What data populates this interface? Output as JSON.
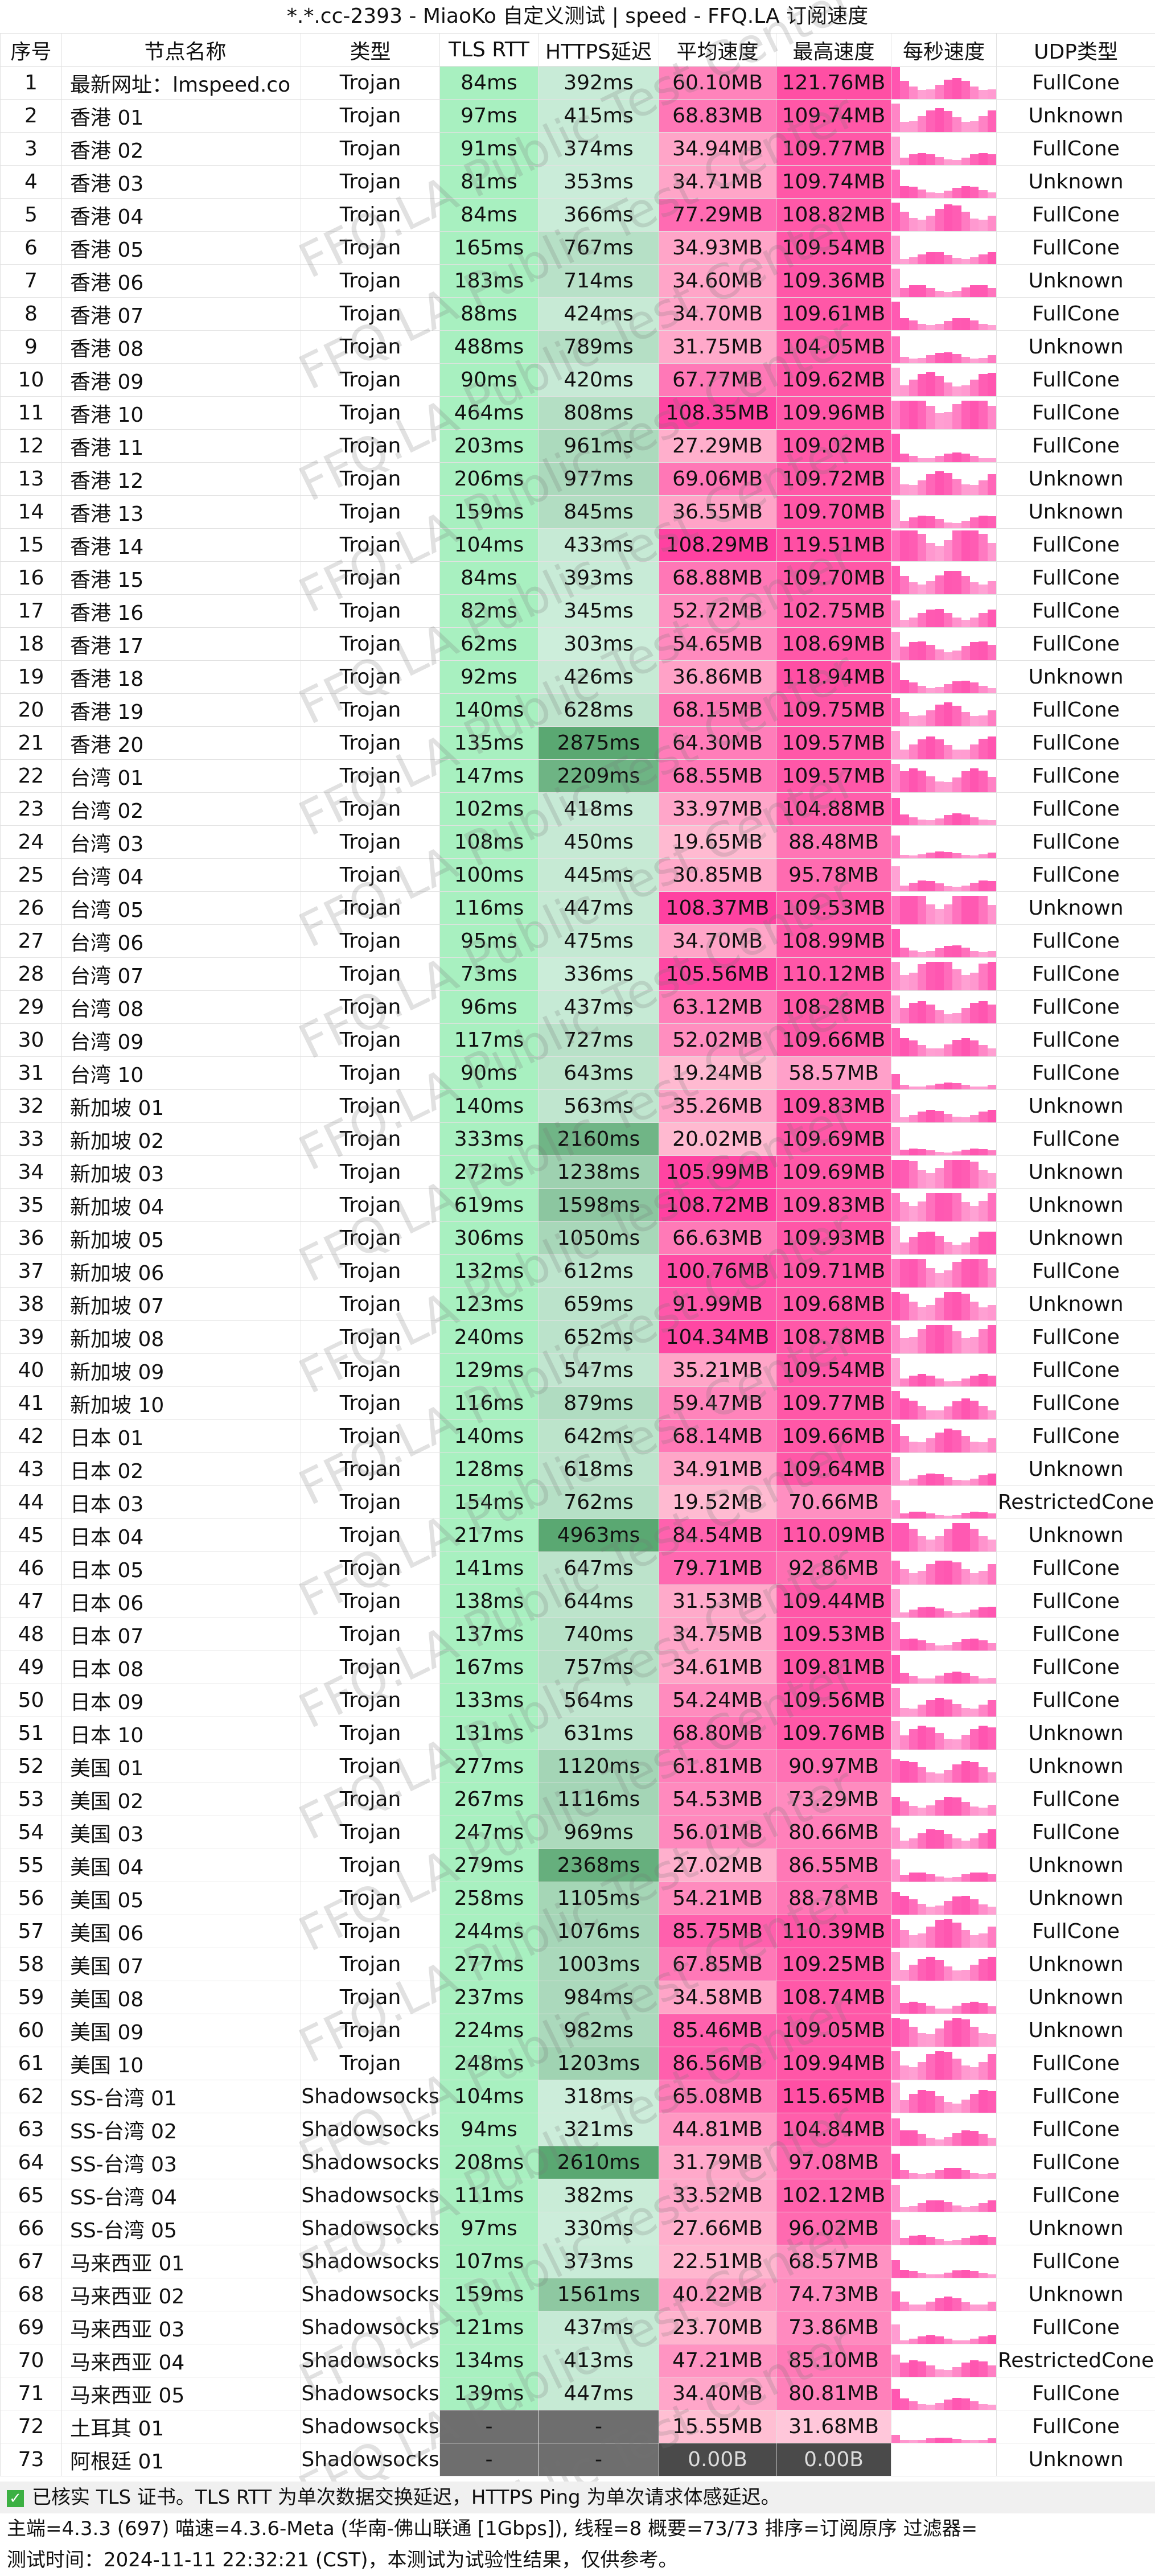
{
  "window_title": "*.*.cc-2393 - MiaoKo 自定义测试 | speed - FFQ.LA 订阅速度",
  "columns": [
    "序号",
    "节点名称",
    "类型",
    "TLS RTT",
    "HTTPS延迟",
    "平均速度",
    "最高速度",
    "每秒速度",
    "UDP类型"
  ],
  "watermark": "FFQ.LA Public Test Center",
  "colors": {
    "tls": "#a8f0c0",
    "https_scale": [
      "#cdeedb",
      "#5aa872"
    ],
    "avg_scale": [
      "#ffc0d3",
      "#ff3fa0"
    ],
    "max_scale": [
      "#ffc9db",
      "#ff4fa4"
    ],
    "spark": "#ff55b0",
    "dash": "#6e6e6e",
    "zero": "#4a4a4a"
  },
  "rows": [
    [
      "1",
      "最新网址：lmspeed.co",
      "Trojan",
      "84ms",
      "392ms",
      "60.10MB",
      "121.76MB",
      "FullCone"
    ],
    [
      "2",
      "香港 01",
      "Trojan",
      "97ms",
      "415ms",
      "68.83MB",
      "109.74MB",
      "Unknown"
    ],
    [
      "3",
      "香港 02",
      "Trojan",
      "91ms",
      "374ms",
      "34.94MB",
      "109.77MB",
      "FullCone"
    ],
    [
      "4",
      "香港 03",
      "Trojan",
      "81ms",
      "353ms",
      "34.71MB",
      "109.74MB",
      "Unknown"
    ],
    [
      "5",
      "香港 04",
      "Trojan",
      "84ms",
      "366ms",
      "77.29MB",
      "108.82MB",
      "FullCone"
    ],
    [
      "6",
      "香港 05",
      "Trojan",
      "165ms",
      "767ms",
      "34.93MB",
      "109.54MB",
      "FullCone"
    ],
    [
      "7",
      "香港 06",
      "Trojan",
      "183ms",
      "714ms",
      "34.60MB",
      "109.36MB",
      "Unknown"
    ],
    [
      "8",
      "香港 07",
      "Trojan",
      "88ms",
      "424ms",
      "34.70MB",
      "109.61MB",
      "FullCone"
    ],
    [
      "9",
      "香港 08",
      "Trojan",
      "488ms",
      "789ms",
      "31.75MB",
      "104.05MB",
      "Unknown"
    ],
    [
      "10",
      "香港 09",
      "Trojan",
      "90ms",
      "420ms",
      "67.77MB",
      "109.62MB",
      "FullCone"
    ],
    [
      "11",
      "香港 10",
      "Trojan",
      "464ms",
      "808ms",
      "108.35MB",
      "109.96MB",
      "FullCone"
    ],
    [
      "12",
      "香港 11",
      "Trojan",
      "203ms",
      "961ms",
      "27.29MB",
      "109.02MB",
      "FullCone"
    ],
    [
      "13",
      "香港 12",
      "Trojan",
      "206ms",
      "977ms",
      "69.06MB",
      "109.72MB",
      "Unknown"
    ],
    [
      "14",
      "香港 13",
      "Trojan",
      "159ms",
      "845ms",
      "36.55MB",
      "109.70MB",
      "Unknown"
    ],
    [
      "15",
      "香港 14",
      "Trojan",
      "104ms",
      "433ms",
      "108.29MB",
      "119.51MB",
      "FullCone"
    ],
    [
      "16",
      "香港 15",
      "Trojan",
      "84ms",
      "393ms",
      "68.88MB",
      "109.70MB",
      "FullCone"
    ],
    [
      "17",
      "香港 16",
      "Trojan",
      "82ms",
      "345ms",
      "52.72MB",
      "102.75MB",
      "FullCone"
    ],
    [
      "18",
      "香港 17",
      "Trojan",
      "62ms",
      "303ms",
      "54.65MB",
      "108.69MB",
      "FullCone"
    ],
    [
      "19",
      "香港 18",
      "Trojan",
      "92ms",
      "426ms",
      "36.86MB",
      "118.94MB",
      "Unknown"
    ],
    [
      "20",
      "香港 19",
      "Trojan",
      "140ms",
      "628ms",
      "68.15MB",
      "109.75MB",
      "FullCone"
    ],
    [
      "21",
      "香港 20",
      "Trojan",
      "135ms",
      "2875ms",
      "64.30MB",
      "109.57MB",
      "FullCone"
    ],
    [
      "22",
      "台湾 01",
      "Trojan",
      "147ms",
      "2209ms",
      "68.55MB",
      "109.57MB",
      "FullCone"
    ],
    [
      "23",
      "台湾 02",
      "Trojan",
      "102ms",
      "418ms",
      "33.97MB",
      "104.88MB",
      "FullCone"
    ],
    [
      "24",
      "台湾 03",
      "Trojan",
      "108ms",
      "450ms",
      "19.65MB",
      "88.48MB",
      "FullCone"
    ],
    [
      "25",
      "台湾 04",
      "Trojan",
      "100ms",
      "445ms",
      "30.85MB",
      "95.78MB",
      "FullCone"
    ],
    [
      "26",
      "台湾 05",
      "Trojan",
      "116ms",
      "447ms",
      "108.37MB",
      "109.53MB",
      "Unknown"
    ],
    [
      "27",
      "台湾 06",
      "Trojan",
      "95ms",
      "475ms",
      "34.70MB",
      "108.99MB",
      "FullCone"
    ],
    [
      "28",
      "台湾 07",
      "Trojan",
      "73ms",
      "336ms",
      "105.56MB",
      "110.12MB",
      "FullCone"
    ],
    [
      "29",
      "台湾 08",
      "Trojan",
      "96ms",
      "437ms",
      "63.12MB",
      "108.28MB",
      "FullCone"
    ],
    [
      "30",
      "台湾 09",
      "Trojan",
      "117ms",
      "727ms",
      "52.02MB",
      "109.66MB",
      "FullCone"
    ],
    [
      "31",
      "台湾 10",
      "Trojan",
      "90ms",
      "643ms",
      "19.24MB",
      "58.57MB",
      "FullCone"
    ],
    [
      "32",
      "新加坡 01",
      "Trojan",
      "140ms",
      "563ms",
      "35.26MB",
      "109.83MB",
      "Unknown"
    ],
    [
      "33",
      "新加坡 02",
      "Trojan",
      "333ms",
      "2160ms",
      "20.02MB",
      "109.69MB",
      "FullCone"
    ],
    [
      "34",
      "新加坡 03",
      "Trojan",
      "272ms",
      "1238ms",
      "105.99MB",
      "109.69MB",
      "Unknown"
    ],
    [
      "35",
      "新加坡 04",
      "Trojan",
      "619ms",
      "1598ms",
      "108.72MB",
      "109.83MB",
      "Unknown"
    ],
    [
      "36",
      "新加坡 05",
      "Trojan",
      "306ms",
      "1050ms",
      "66.63MB",
      "109.93MB",
      "Unknown"
    ],
    [
      "37",
      "新加坡 06",
      "Trojan",
      "132ms",
      "612ms",
      "100.76MB",
      "109.71MB",
      "FullCone"
    ],
    [
      "38",
      "新加坡 07",
      "Trojan",
      "123ms",
      "659ms",
      "91.99MB",
      "109.68MB",
      "Unknown"
    ],
    [
      "39",
      "新加坡 08",
      "Trojan",
      "240ms",
      "652ms",
      "104.34MB",
      "108.78MB",
      "FullCone"
    ],
    [
      "40",
      "新加坡 09",
      "Trojan",
      "129ms",
      "547ms",
      "35.21MB",
      "109.54MB",
      "FullCone"
    ],
    [
      "41",
      "新加坡 10",
      "Trojan",
      "116ms",
      "879ms",
      "59.47MB",
      "109.77MB",
      "FullCone"
    ],
    [
      "42",
      "日本 01",
      "Trojan",
      "140ms",
      "642ms",
      "68.14MB",
      "109.66MB",
      "FullCone"
    ],
    [
      "43",
      "日本 02",
      "Trojan",
      "128ms",
      "618ms",
      "34.91MB",
      "109.64MB",
      "Unknown"
    ],
    [
      "44",
      "日本 03",
      "Trojan",
      "154ms",
      "762ms",
      "19.52MB",
      "70.66MB",
      "RestrictedCone"
    ],
    [
      "45",
      "日本 04",
      "Trojan",
      "217ms",
      "4963ms",
      "84.54MB",
      "110.09MB",
      "Unknown"
    ],
    [
      "46",
      "日本 05",
      "Trojan",
      "141ms",
      "647ms",
      "79.71MB",
      "92.86MB",
      "FullCone"
    ],
    [
      "47",
      "日本 06",
      "Trojan",
      "138ms",
      "644ms",
      "31.53MB",
      "109.44MB",
      "FullCone"
    ],
    [
      "48",
      "日本 07",
      "Trojan",
      "137ms",
      "740ms",
      "34.75MB",
      "109.53MB",
      "FullCone"
    ],
    [
      "49",
      "日本 08",
      "Trojan",
      "167ms",
      "757ms",
      "34.61MB",
      "109.81MB",
      "FullCone"
    ],
    [
      "50",
      "日本 09",
      "Trojan",
      "133ms",
      "564ms",
      "54.24MB",
      "109.56MB",
      "FullCone"
    ],
    [
      "51",
      "日本 10",
      "Trojan",
      "131ms",
      "631ms",
      "68.80MB",
      "109.76MB",
      "Unknown"
    ],
    [
      "52",
      "美国 01",
      "Trojan",
      "277ms",
      "1120ms",
      "61.81MB",
      "90.97MB",
      "Unknown"
    ],
    [
      "53",
      "美国 02",
      "Trojan",
      "267ms",
      "1116ms",
      "54.53MB",
      "73.29MB",
      "FullCone"
    ],
    [
      "54",
      "美国 03",
      "Trojan",
      "247ms",
      "969ms",
      "56.01MB",
      "80.66MB",
      "FullCone"
    ],
    [
      "55",
      "美国 04",
      "Trojan",
      "279ms",
      "2368ms",
      "27.02MB",
      "86.55MB",
      "Unknown"
    ],
    [
      "56",
      "美国 05",
      "Trojan",
      "258ms",
      "1105ms",
      "54.21MB",
      "88.78MB",
      "Unknown"
    ],
    [
      "57",
      "美国 06",
      "Trojan",
      "244ms",
      "1076ms",
      "85.75MB",
      "110.39MB",
      "FullCone"
    ],
    [
      "58",
      "美国 07",
      "Trojan",
      "277ms",
      "1003ms",
      "67.85MB",
      "109.25MB",
      "Unknown"
    ],
    [
      "59",
      "美国 08",
      "Trojan",
      "237ms",
      "984ms",
      "34.58MB",
      "108.74MB",
      "Unknown"
    ],
    [
      "60",
      "美国 09",
      "Trojan",
      "224ms",
      "982ms",
      "85.46MB",
      "109.05MB",
      "Unknown"
    ],
    [
      "61",
      "美国 10",
      "Trojan",
      "248ms",
      "1203ms",
      "86.56MB",
      "109.94MB",
      "FullCone"
    ],
    [
      "62",
      "SS-台湾 01",
      "Shadowsocks",
      "104ms",
      "318ms",
      "65.08MB",
      "115.65MB",
      "FullCone"
    ],
    [
      "63",
      "SS-台湾 02",
      "Shadowsocks",
      "94ms",
      "321ms",
      "44.81MB",
      "104.84MB",
      "FullCone"
    ],
    [
      "64",
      "SS-台湾 03",
      "Shadowsocks",
      "208ms",
      "2610ms",
      "31.79MB",
      "97.08MB",
      "FullCone"
    ],
    [
      "65",
      "SS-台湾 04",
      "Shadowsocks",
      "111ms",
      "382ms",
      "33.52MB",
      "102.12MB",
      "FullCone"
    ],
    [
      "66",
      "SS-台湾 05",
      "Shadowsocks",
      "97ms",
      "330ms",
      "27.66MB",
      "96.02MB",
      "Unknown"
    ],
    [
      "67",
      "马来西亚 01",
      "Shadowsocks",
      "107ms",
      "373ms",
      "22.51MB",
      "68.57MB",
      "FullCone"
    ],
    [
      "68",
      "马来西亚 02",
      "Shadowsocks",
      "159ms",
      "1561ms",
      "40.22MB",
      "74.73MB",
      "Unknown"
    ],
    [
      "69",
      "马来西亚 03",
      "Shadowsocks",
      "121ms",
      "437ms",
      "23.70MB",
      "73.86MB",
      "FullCone"
    ],
    [
      "70",
      "马来西亚 04",
      "Shadowsocks",
      "134ms",
      "413ms",
      "47.21MB",
      "85.10MB",
      "RestrictedCone"
    ],
    [
      "71",
      "马来西亚 05",
      "Shadowsocks",
      "139ms",
      "447ms",
      "34.40MB",
      "80.81MB",
      "FullCone"
    ],
    [
      "72",
      "土耳其 01",
      "Shadowsocks",
      "-",
      "-",
      "15.55MB",
      "31.68MB",
      "FullCone"
    ],
    [
      "73",
      "阿根廷 01",
      "Shadowsocks",
      "-",
      "-",
      "0.00B",
      "0.00B",
      "Unknown"
    ]
  ],
  "footer": {
    "line1": "已核实 TLS 证书。TLS RTT 为单次数据交换延迟，HTTPS Ping 为单次请求体感延迟。",
    "line2": "主端=4.3.3 (697) 喵速=4.3.6-Meta (华南-佛山联通 [1Gbps]), 线程=8 概要=73/73 排序=订阅原序 过滤器=",
    "line3": "测试时间：2024-11-11 22:32:21 (CST)，本测试为试验性结果，仅供参考。"
  }
}
